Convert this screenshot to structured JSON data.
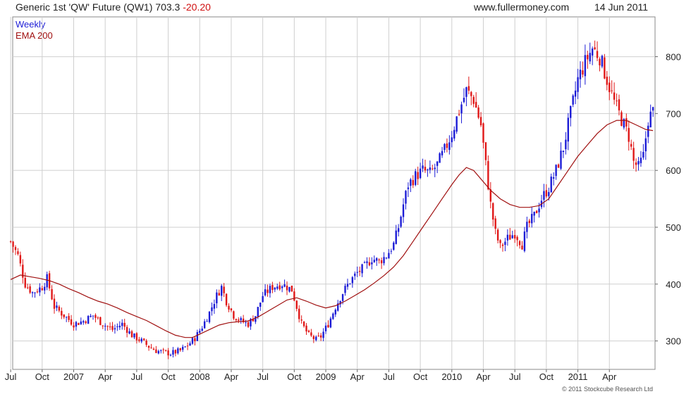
{
  "header": {
    "title": "Generic 1st 'QW' Future (QW1)",
    "last": "703.3",
    "change": "-20.20",
    "site": "www.fullermoney.com",
    "date": "14 Jun 2011"
  },
  "legend": {
    "period": "Weekly",
    "ema": "EMA 200"
  },
  "copyright": "© 2011 Stockcube Research Ltd",
  "colors": {
    "up": "#1c1cd6",
    "down": "#e01818",
    "ema": "#a01010",
    "grid": "#cfcfcf",
    "title_change": "#d01010"
  },
  "chart_data": {
    "type": "candlestick",
    "title": "Generic 1st 'QW' Future (QW1)",
    "ylim": [
      250,
      870
    ],
    "y_ticks": [
      300,
      400,
      500,
      600,
      700,
      800
    ],
    "x_labels": [
      "Jul",
      "Oct",
      "2007",
      "Apr",
      "Jul",
      "Oct",
      "2008",
      "Apr",
      "Jul",
      "Oct",
      "2009",
      "Apr",
      "Jul",
      "Oct",
      "2010",
      "Apr",
      "Jul",
      "Oct",
      "2011",
      "Apr"
    ],
    "x_label_weeks": [
      0,
      13,
      26,
      39,
      52,
      65,
      78,
      91,
      104,
      117,
      130,
      143,
      156,
      169,
      182,
      195,
      208,
      221,
      234,
      247
    ],
    "weeks_total": 259,
    "close_keypoints": [
      [
        0,
        475
      ],
      [
        3,
        450
      ],
      [
        6,
        400
      ],
      [
        9,
        385
      ],
      [
        13,
        395
      ],
      [
        15,
        410
      ],
      [
        18,
        360
      ],
      [
        22,
        345
      ],
      [
        26,
        330
      ],
      [
        30,
        335
      ],
      [
        34,
        345
      ],
      [
        38,
        330
      ],
      [
        42,
        320
      ],
      [
        46,
        330
      ],
      [
        50,
        310
      ],
      [
        54,
        300
      ],
      [
        57,
        290
      ],
      [
        60,
        283
      ],
      [
        63,
        280
      ],
      [
        66,
        278
      ],
      [
        70,
        283
      ],
      [
        73,
        292
      ],
      [
        76,
        305
      ],
      [
        79,
        325
      ],
      [
        82,
        350
      ],
      [
        85,
        380
      ],
      [
        87,
        395
      ],
      [
        89,
        370
      ],
      [
        92,
        345
      ],
      [
        95,
        335
      ],
      [
        98,
        330
      ],
      [
        101,
        345
      ],
      [
        104,
        380
      ],
      [
        108,
        395
      ],
      [
        112,
        400
      ],
      [
        116,
        390
      ],
      [
        118,
        360
      ],
      [
        120,
        330
      ],
      [
        123,
        310
      ],
      [
        126,
        302
      ],
      [
        128,
        308
      ],
      [
        131,
        330
      ],
      [
        134,
        360
      ],
      [
        137,
        385
      ],
      [
        140,
        405
      ],
      [
        143,
        420
      ],
      [
        146,
        430
      ],
      [
        149,
        445
      ],
      [
        152,
        440
      ],
      [
        155,
        450
      ],
      [
        158,
        470
      ],
      [
        160,
        500
      ],
      [
        162,
        540
      ],
      [
        164,
        575
      ],
      [
        167,
        590
      ],
      [
        170,
        600
      ],
      [
        173,
        595
      ],
      [
        176,
        610
      ],
      [
        179,
        635
      ],
      [
        182,
        665
      ],
      [
        185,
        705
      ],
      [
        188,
        740
      ],
      [
        191,
        725
      ],
      [
        194,
        680
      ],
      [
        196,
        610
      ],
      [
        198,
        540
      ],
      [
        200,
        490
      ],
      [
        202,
        465
      ],
      [
        205,
        480
      ],
      [
        208,
        490
      ],
      [
        211,
        470
      ],
      [
        213,
        500
      ],
      [
        216,
        520
      ],
      [
        219,
        550
      ],
      [
        222,
        570
      ],
      [
        225,
        600
      ],
      [
        228,
        640
      ],
      [
        231,
        700
      ],
      [
        234,
        760
      ],
      [
        237,
        790
      ],
      [
        240,
        815
      ],
      [
        243,
        800
      ],
      [
        246,
        760
      ],
      [
        249,
        720
      ],
      [
        252,
        690
      ],
      [
        255,
        660
      ],
      [
        257,
        615
      ],
      [
        259,
        605
      ],
      [
        261,
        625
      ],
      [
        263,
        690
      ],
      [
        265,
        703
      ]
    ],
    "ema_200": [
      [
        0,
        408
      ],
      [
        4,
        416
      ],
      [
        8,
        413
      ],
      [
        12,
        410
      ],
      [
        16,
        406
      ],
      [
        20,
        400
      ],
      [
        24,
        392
      ],
      [
        28,
        385
      ],
      [
        32,
        377
      ],
      [
        36,
        370
      ],
      [
        40,
        365
      ],
      [
        44,
        358
      ],
      [
        48,
        350
      ],
      [
        52,
        343
      ],
      [
        56,
        336
      ],
      [
        60,
        327
      ],
      [
        64,
        318
      ],
      [
        68,
        310
      ],
      [
        72,
        306
      ],
      [
        75,
        306
      ],
      [
        78,
        312
      ],
      [
        82,
        320
      ],
      [
        86,
        328
      ],
      [
        90,
        332
      ],
      [
        94,
        334
      ],
      [
        98,
        335
      ],
      [
        102,
        342
      ],
      [
        106,
        352
      ],
      [
        110,
        362
      ],
      [
        114,
        372
      ],
      [
        118,
        376
      ],
      [
        122,
        370
      ],
      [
        126,
        363
      ],
      [
        130,
        358
      ],
      [
        134,
        362
      ],
      [
        138,
        370
      ],
      [
        142,
        380
      ],
      [
        146,
        390
      ],
      [
        150,
        402
      ],
      [
        154,
        415
      ],
      [
        158,
        430
      ],
      [
        162,
        450
      ],
      [
        166,
        475
      ],
      [
        170,
        500
      ],
      [
        174,
        525
      ],
      [
        178,
        550
      ],
      [
        182,
        575
      ],
      [
        185,
        592
      ],
      [
        188,
        605
      ],
      [
        191,
        600
      ],
      [
        194,
        585
      ],
      [
        198,
        565
      ],
      [
        202,
        550
      ],
      [
        206,
        540
      ],
      [
        210,
        535
      ],
      [
        214,
        535
      ],
      [
        218,
        538
      ],
      [
        222,
        550
      ],
      [
        226,
        575
      ],
      [
        230,
        600
      ],
      [
        234,
        625
      ],
      [
        238,
        645
      ],
      [
        242,
        665
      ],
      [
        246,
        680
      ],
      [
        250,
        688
      ],
      [
        254,
        688
      ],
      [
        258,
        680
      ],
      [
        262,
        672
      ],
      [
        265,
        670
      ]
    ]
  }
}
